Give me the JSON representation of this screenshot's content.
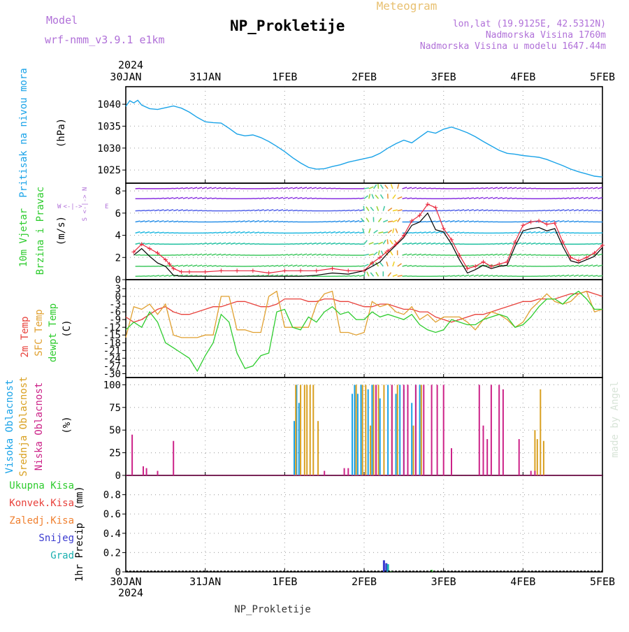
{
  "header": {
    "title": "NP_Prokletije",
    "subtitle": "Meteogram",
    "model_label": "Model",
    "model_value": "wrf-nmm_v3.9.1  e1km",
    "lonlat": "lon,lat (19.9125E, 42.5312N)",
    "altitude": "Nadmorska Visina 1760m",
    "model_altitude": "Nadmorska Visina u modelu 1647.44m",
    "watermark": "made by Angel",
    "footer": "NP_Prokletije"
  },
  "time_axis": {
    "year": "2024",
    "ticks": [
      "30JAN",
      "31JAN",
      "1FEB",
      "2FEB",
      "3FEB",
      "4FEB",
      "5FEB"
    ]
  },
  "colors": {
    "pressure": "#1aa3e8",
    "wind_speed": "#000000",
    "gust": "#e8263b",
    "t2m": "#e8413b",
    "sfc": "#e0a030",
    "dewpoint": "#2ecc2e",
    "cloud_high": "#1aa3e8",
    "cloud_mid": "#d9a020",
    "cloud_low": "#cc2288",
    "precip_total": "#2ecc2e",
    "precip_conv": "#e8413b",
    "precip_freezing": "#f08030",
    "precip_snow": "#3a3ad0",
    "precip_graupel": "#1ab0b0"
  },
  "legends": {
    "pressure": [
      "Pritisak na nivou mora",
      "(hPa)"
    ],
    "wind": [
      "10m Vjetar",
      "Brzina i Pravac",
      "(m/s)"
    ],
    "compass": [
      "W",
      "<-|->",
      "E",
      "S <-|-> N"
    ],
    "temp": [
      "2m Temp",
      "SFC Temp",
      "dewpt Temp",
      "(C)"
    ],
    "cloud": [
      "Visoka Oblacnost",
      "Srednja Oblacnost",
      "Niska Oblacnost",
      "(%)"
    ],
    "precip_labels": [
      "Ukupna Kisa",
      "Konvek.Kisa",
      "Zaledj.Kisa",
      "Snijeg",
      "Grad"
    ],
    "precip_axis": [
      "1hr Precip",
      "(mm)"
    ]
  },
  "chart_data": [
    {
      "type": "line",
      "panel": "pressure",
      "ylabel": "Pritisak na nivou mora (hPa)",
      "ylim": [
        1022,
        1044
      ],
      "yticks": [
        1025,
        1030,
        1035,
        1040
      ],
      "x_days": [
        0,
        0.05,
        0.1,
        0.15,
        0.2,
        0.3,
        0.4,
        0.5,
        0.6,
        0.7,
        0.8,
        0.9,
        1.0,
        1.1,
        1.2,
        1.3,
        1.4,
        1.5,
        1.6,
        1.7,
        1.8,
        1.9,
        2.0,
        2.1,
        2.2,
        2.3,
        2.4,
        2.5,
        2.6,
        2.7,
        2.8,
        2.9,
        3.0,
        3.1,
        3.2,
        3.3,
        3.4,
        3.5,
        3.6,
        3.7,
        3.8,
        3.9,
        4.0,
        4.1,
        4.2,
        4.3,
        4.4,
        4.5,
        4.6,
        4.7,
        4.8,
        4.9,
        5.0,
        5.1,
        5.2,
        5.3,
        5.4,
        5.5,
        5.6,
        5.7,
        5.8,
        5.9,
        6.0
      ],
      "series": [
        {
          "name": "Pritisak na nivou mora",
          "values": [
            1039.5,
            1040.8,
            1040.3,
            1040.9,
            1039.8,
            1039.0,
            1038.8,
            1039.2,
            1039.6,
            1039.1,
            1038.2,
            1037.0,
            1036.0,
            1035.8,
            1035.7,
            1034.5,
            1033.2,
            1032.8,
            1033.0,
            1032.4,
            1031.5,
            1030.4,
            1029.2,
            1027.8,
            1026.6,
            1025.6,
            1025.2,
            1025.3,
            1025.8,
            1026.2,
            1026.8,
            1027.2,
            1027.6,
            1028.0,
            1028.8,
            1030.0,
            1031.0,
            1031.8,
            1031.2,
            1032.5,
            1033.8,
            1033.4,
            1034.3,
            1034.8,
            1034.2,
            1033.5,
            1032.6,
            1031.5,
            1030.5,
            1029.5,
            1028.8,
            1028.6,
            1028.3,
            1028.1,
            1027.9,
            1027.4,
            1026.7,
            1026.0,
            1025.2,
            1024.6,
            1024.1,
            1023.6,
            1023.4
          ]
        }
      ]
    },
    {
      "type": "line",
      "panel": "wind",
      "ylabel": "10m Vjetar Brzina i Pravac (m/s)",
      "ylim": [
        0,
        8.7
      ],
      "yticks": [
        0,
        2,
        4,
        6,
        8
      ],
      "x_days": [
        0.1,
        0.2,
        0.3,
        0.4,
        0.5,
        0.55,
        0.6,
        0.7,
        0.8,
        1.0,
        1.2,
        1.4,
        1.6,
        1.8,
        2.0,
        2.2,
        2.4,
        2.6,
        2.8,
        3.0,
        3.1,
        3.2,
        3.3,
        3.4,
        3.5,
        3.6,
        3.7,
        3.8,
        3.9,
        4.0,
        4.1,
        4.2,
        4.3,
        4.4,
        4.5,
        4.6,
        4.7,
        4.8,
        4.9,
        5.0,
        5.1,
        5.2,
        5.3,
        5.4,
        5.5,
        5.6,
        5.7,
        5.8,
        5.9,
        6.0
      ],
      "series": [
        {
          "name": "wind speed",
          "values": [
            2.2,
            2.8,
            2.1,
            1.5,
            1.2,
            0.8,
            0.4,
            0.3,
            0.3,
            0.3,
            0.3,
            0.3,
            0.3,
            0.3,
            0.3,
            0.3,
            0.4,
            0.6,
            0.5,
            0.8,
            1.2,
            1.6,
            2.4,
            3.1,
            3.8,
            4.9,
            5.2,
            6.0,
            4.5,
            4.3,
            3.2,
            1.8,
            0.6,
            0.9,
            1.3,
            1.0,
            1.2,
            1.3,
            3.0,
            4.4,
            4.6,
            4.7,
            4.4,
            4.6,
            3.0,
            1.7,
            1.5,
            1.8,
            2.1,
            2.9
          ]
        },
        {
          "name": "gust",
          "values": [
            2.5,
            3.2,
            2.8,
            2.4,
            1.8,
            1.4,
            1.0,
            0.7,
            0.7,
            0.7,
            0.8,
            0.8,
            0.8,
            0.6,
            0.8,
            0.8,
            0.8,
            1.0,
            0.8,
            0.8,
            1.5,
            2.0,
            2.6,
            3.2,
            4.0,
            5.3,
            5.8,
            6.8,
            6.5,
            4.6,
            3.6,
            2.2,
            1.0,
            1.2,
            1.6,
            1.2,
            1.4,
            1.6,
            3.4,
            4.9,
            5.2,
            5.3,
            5.0,
            5.1,
            3.4,
            2.0,
            1.7,
            2.0,
            2.4,
            3.1
          ]
        }
      ]
    },
    {
      "type": "line",
      "panel": "temperature",
      "ylabel": "(C)",
      "ylim": [
        -31.5,
        6.5
      ],
      "yticks": [
        3,
        0,
        -3,
        -6,
        -9,
        -12,
        -15,
        -18,
        -21,
        -24,
        -27,
        -30
      ],
      "x_days": [
        0.0,
        0.1,
        0.2,
        0.3,
        0.4,
        0.5,
        0.6,
        0.7,
        0.8,
        0.9,
        1.0,
        1.1,
        1.2,
        1.3,
        1.4,
        1.5,
        1.6,
        1.7,
        1.8,
        1.9,
        2.0,
        2.1,
        2.2,
        2.3,
        2.4,
        2.5,
        2.6,
        2.7,
        2.8,
        2.9,
        3.0,
        3.1,
        3.2,
        3.3,
        3.4,
        3.5,
        3.6,
        3.7,
        3.8,
        3.9,
        4.0,
        4.1,
        4.2,
        4.3,
        4.4,
        4.5,
        4.6,
        4.7,
        4.8,
        4.9,
        5.0,
        5.1,
        5.2,
        5.3,
        5.4,
        5.5,
        5.6,
        5.7,
        5.8,
        5.9,
        6.0
      ],
      "series": [
        {
          "name": "2m Temp",
          "values": [
            -8,
            -10,
            -9,
            -7,
            -5,
            -4,
            -6,
            -7,
            -7,
            -6,
            -5,
            -4,
            -4,
            -3,
            -2,
            -2,
            -3,
            -4,
            -4,
            -3,
            -1,
            -1,
            -1,
            -2,
            -2,
            -1,
            -1,
            -2,
            -2,
            -3,
            -4,
            -4,
            -3,
            -3,
            -4,
            -5,
            -5,
            -6,
            -6,
            -8,
            -9,
            -10,
            -9,
            -8,
            -7,
            -7,
            -6,
            -5,
            -4,
            -3,
            -2,
            -2,
            -1,
            -1,
            -1,
            0,
            1,
            1,
            2,
            1,
            0
          ]
        },
        {
          "name": "SFC Temp",
          "values": [
            -16,
            -4,
            -5,
            -3,
            -7,
            -3,
            -15,
            -16,
            -16,
            -16,
            -15,
            -15,
            0,
            0,
            -13,
            -13,
            -14,
            -14,
            0,
            2,
            -12,
            -12,
            -12,
            -12,
            -3,
            1,
            2,
            -14,
            -14,
            -15,
            -14,
            -2,
            -4,
            -3,
            -6,
            -7,
            -4,
            -9,
            -7,
            -10,
            -8,
            -8,
            -8,
            -10,
            -13,
            -9,
            -6,
            -7,
            -9,
            -12,
            -10,
            -5,
            -2,
            1,
            -2,
            -3,
            -2,
            1,
            2,
            -6,
            -5
          ]
        },
        {
          "name": "dewpt Temp",
          "values": [
            -13,
            -10,
            -12,
            -6,
            -10,
            -18,
            -20,
            -22,
            -24,
            -29,
            -23,
            -18,
            -7,
            -10,
            -22,
            -28,
            -27,
            -23,
            -22,
            -6,
            -5,
            -12,
            -13,
            -8,
            -10,
            -6,
            -4,
            -7,
            -6,
            -9,
            -9,
            -6,
            -8,
            -7,
            -8,
            -9,
            -7,
            -11,
            -13,
            -14,
            -13,
            -9,
            -10,
            -11,
            -11,
            -9,
            -8,
            -7,
            -8,
            -12,
            -11,
            -8,
            -4,
            -1,
            -1,
            -3,
            0,
            2,
            -1,
            -5,
            -5
          ]
        }
      ]
    },
    {
      "type": "bar",
      "panel": "cloud",
      "ylabel": "Oblacnost (%)",
      "ylim": [
        0,
        108
      ],
      "yticks": [
        0,
        25,
        50,
        75,
        100
      ],
      "series": [
        {
          "name": "Visoka Oblacnost",
          "x_days": [
            2.12,
            2.15,
            2.18,
            2.85,
            2.88,
            2.92,
            2.96,
            3.05,
            3.1,
            3.2,
            3.3,
            3.4,
            3.45,
            3.5,
            3.6,
            3.65,
            3.7
          ],
          "values": [
            60,
            100,
            80,
            90,
            100,
            90,
            100,
            95,
            100,
            85,
            100,
            90,
            100,
            95,
            80,
            100,
            100
          ]
        },
        {
          "name": "Srednja Oblacnost",
          "x_days": [
            2.14,
            2.2,
            2.25,
            2.28,
            2.32,
            2.36,
            2.42,
            2.9,
            2.98,
            3.02,
            3.08,
            3.12,
            3.18,
            3.25,
            3.35,
            3.42,
            3.55,
            3.62,
            3.72,
            5.15,
            5.18,
            5.22,
            5.26
          ],
          "values": [
            100,
            100,
            100,
            100,
            100,
            100,
            60,
            100,
            100,
            100,
            55,
            100,
            100,
            100,
            100,
            100,
            100,
            55,
            100,
            50,
            40,
            95,
            38
          ]
        },
        {
          "name": "Niska Oblacnost",
          "x_days": [
            0.08,
            0.22,
            0.26,
            0.4,
            0.6,
            2.5,
            2.75,
            2.8,
            3.15,
            3.35,
            3.5,
            3.55,
            3.65,
            3.75,
            3.85,
            3.92,
            4.0,
            4.1,
            4.45,
            4.5,
            4.55,
            4.6,
            4.7,
            4.75,
            4.95,
            5.1,
            5.15
          ],
          "values": [
            45,
            10,
            8,
            5,
            38,
            5,
            8,
            8,
            100,
            100,
            100,
            100,
            100,
            100,
            100,
            100,
            100,
            30,
            100,
            55,
            40,
            100,
            100,
            95,
            40,
            5,
            5
          ]
        }
      ]
    },
    {
      "type": "bar",
      "panel": "precip",
      "ylabel": "1hr Precip (mm)",
      "ylim": [
        0,
        1.0
      ],
      "yticks": [
        0,
        0.2,
        0.4,
        0.6,
        0.8
      ],
      "series": [
        {
          "name": "Snijeg",
          "x_days": [
            3.25,
            3.28
          ],
          "values": [
            0.12,
            0.09
          ]
        },
        {
          "name": "Grad",
          "x_days": [
            3.3
          ],
          "values": [
            0.08
          ]
        },
        {
          "name": "Ukupna Kisa",
          "x_days": [
            3.35,
            3.85
          ],
          "values": [
            0.01,
            0.02
          ]
        }
      ]
    }
  ]
}
